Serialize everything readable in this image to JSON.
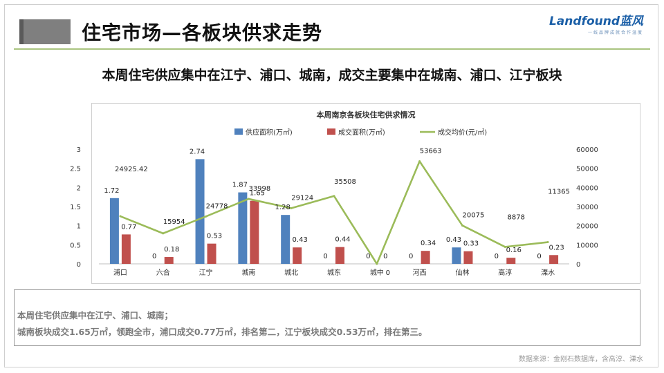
{
  "header": {
    "title": "住宅市场—各板块供求走势",
    "subtitle": "本周住宅供应集中在江宁、浦口、城南，成交主要集中在城南、浦口、江宁板块"
  },
  "logo": {
    "main": "Landfound蓝风",
    "sub": "一线品牌成就合作温度"
  },
  "colors": {
    "supply": "#4f81bd",
    "deal": "#c0504d",
    "price": "#9bbb59"
  },
  "chart_data": {
    "type": "bar",
    "title": "本周南京各板块住宅供求情况",
    "categories": [
      "浦口",
      "六合",
      "江宁",
      "城南",
      "城北",
      "城东",
      "城中",
      "河西",
      "仙林",
      "高淳",
      "溧水"
    ],
    "series": [
      {
        "name": "供应面积(万㎡)",
        "type": "bar",
        "axis": "left",
        "values": [
          1.72,
          0,
          2.74,
          1.87,
          1.28,
          0,
          0,
          0,
          0.43,
          0,
          0
        ],
        "labels": [
          "1.72",
          "0",
          "2.74",
          "1.87",
          "1.28",
          "0",
          "0",
          "0",
          "0.43",
          "0",
          "0"
        ]
      },
      {
        "name": "成交面积(万㎡)",
        "type": "bar",
        "axis": "left",
        "values": [
          0.77,
          0.18,
          0.53,
          1.65,
          0.43,
          0.44,
          0,
          0.34,
          0.33,
          0.16,
          0.23
        ],
        "labels": [
          "0.77",
          "0.18",
          "0.53",
          "1.65",
          "0.43",
          "0.44",
          "0",
          "0.34",
          "0.33",
          "0.16",
          "0.23"
        ]
      },
      {
        "name": "成交均价(元/㎡)",
        "type": "line",
        "axis": "right",
        "values": [
          24925.42,
          15954,
          24778,
          33998,
          29124,
          35508,
          0,
          53663,
          20075,
          8878,
          11365
        ],
        "labels": [
          "24925.42",
          "15954",
          "24778",
          "33998",
          "29124",
          "35508",
          "0",
          "53663",
          "20075",
          "8878",
          "11365"
        ]
      }
    ],
    "y_left": {
      "min": 0,
      "max": 3,
      "ticks": [
        "0",
        "0.5",
        "1",
        "1.5",
        "2",
        "2.5",
        "3"
      ]
    },
    "y_right": {
      "min": 0,
      "max": 60000,
      "ticks": [
        "0",
        "10000",
        "20000",
        "30000",
        "40000",
        "50000",
        "60000"
      ]
    },
    "legend_position": "top",
    "grid": false
  },
  "notes": {
    "line1": "本周住宅供应集中在江宁、浦口、城南；",
    "line2": "城南板块成交1.65万㎡，领跑全市，浦口成交0.77万㎡，排名第二，江宁板块成交0.53万㎡，排在第三。"
  },
  "source": "数据来源：金刚石数据库，含高淳、溧水"
}
